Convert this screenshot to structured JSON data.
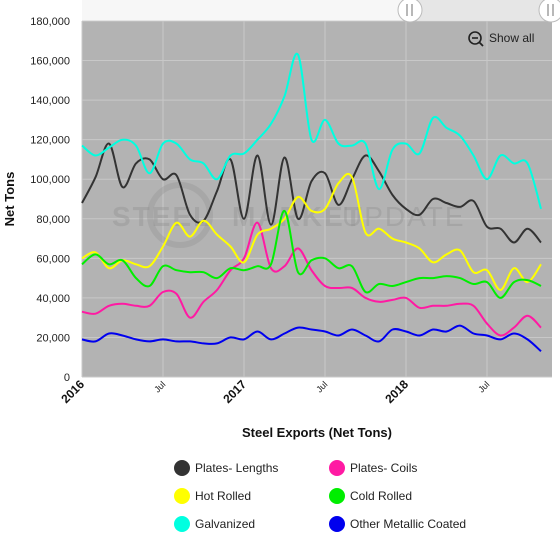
{
  "zoom_control": {
    "label": "Show all",
    "icon": "zoom-out-icon"
  },
  "watermark": {
    "part1": "STEEL",
    "part2": "MARKET",
    "part3": "UPDATE"
  },
  "chart_data": {
    "type": "line",
    "title": "",
    "xlabel": "Steel Exports (Net Tons)",
    "ylabel": "Net Tons",
    "ylim": [
      0,
      180000
    ],
    "yticks": [
      0,
      20000,
      40000,
      60000,
      80000,
      100000,
      120000,
      140000,
      160000,
      180000
    ],
    "ytick_labels": [
      "0",
      "20,000",
      "40,000",
      "60,000",
      "80,000",
      "100,000",
      "120,000",
      "140,000",
      "160,000",
      "180,000"
    ],
    "x_range": [
      "2016-01",
      "2018-11"
    ],
    "xticks": [
      {
        "label": "2016",
        "month": 0,
        "major": true
      },
      {
        "label": "Jul",
        "month": 6,
        "major": false
      },
      {
        "label": "2017",
        "month": 12,
        "major": true
      },
      {
        "label": "Jul",
        "month": 18,
        "major": false
      },
      {
        "label": "2018",
        "month": 24,
        "major": true
      },
      {
        "label": "Jul",
        "month": 30,
        "major": false
      }
    ],
    "grid": true,
    "legend_position": "bottom",
    "x": [
      "2016-01",
      "2016-02",
      "2016-03",
      "2016-04",
      "2016-05",
      "2016-06",
      "2016-07",
      "2016-08",
      "2016-09",
      "2016-10",
      "2016-11",
      "2016-12",
      "2017-01",
      "2017-02",
      "2017-03",
      "2017-04",
      "2017-05",
      "2017-06",
      "2017-07",
      "2017-08",
      "2017-09",
      "2017-10",
      "2017-11",
      "2017-12",
      "2018-01",
      "2018-02",
      "2018-03",
      "2018-04",
      "2018-05",
      "2018-06",
      "2018-07",
      "2018-08",
      "2018-09",
      "2018-10",
      "2018-11"
    ],
    "series": [
      {
        "name": "Plates- Lengths",
        "color": "#333333",
        "values": [
          88000,
          101000,
          118000,
          96000,
          108000,
          110000,
          100000,
          102000,
          82000,
          79000,
          94000,
          110000,
          80000,
          112000,
          77000,
          111000,
          80000,
          99000,
          103000,
          87000,
          100000,
          112000,
          104000,
          92000,
          85000,
          82000,
          90000,
          88000,
          86000,
          89000,
          76000,
          75000,
          68000,
          75000,
          68000
        ]
      },
      {
        "name": "Plates- Coils",
        "color": "#ff1aa3",
        "values": [
          33000,
          32000,
          36000,
          37000,
          36000,
          36000,
          43000,
          42000,
          30000,
          38000,
          44000,
          54000,
          60000,
          78000,
          55000,
          56000,
          65000,
          54000,
          46000,
          45000,
          45000,
          40000,
          38000,
          39000,
          40000,
          35000,
          36000,
          36000,
          37000,
          36000,
          27000,
          21000,
          25000,
          31000,
          25000
        ]
      },
      {
        "name": "Hot Rolled",
        "color": "#ffff00",
        "values": [
          60000,
          63000,
          55000,
          59000,
          57000,
          56000,
          66000,
          78000,
          71000,
          79000,
          72000,
          66000,
          58000,
          72000,
          75000,
          80000,
          91000,
          84000,
          85000,
          98000,
          101000,
          73000,
          75000,
          70000,
          68000,
          65000,
          58000,
          62000,
          64000,
          53000,
          54000,
          44000,
          55000,
          48000,
          57000
        ]
      },
      {
        "name": "Cold Rolled",
        "color": "#00ee00",
        "values": [
          57000,
          62000,
          57000,
          59000,
          50000,
          46000,
          56000,
          54000,
          53000,
          53000,
          50000,
          55000,
          54000,
          56000,
          57000,
          84000,
          53000,
          59000,
          60000,
          55000,
          56000,
          43000,
          47000,
          46000,
          48000,
          50000,
          50000,
          51000,
          50000,
          47000,
          48000,
          40000,
          48000,
          49000,
          46000
        ]
      },
      {
        "name": "Galvanized",
        "color": "#00ffe0",
        "values": [
          117000,
          112000,
          116000,
          120000,
          117000,
          103000,
          118000,
          118000,
          110000,
          108000,
          100000,
          112000,
          113000,
          120000,
          128000,
          142000,
          163000,
          120000,
          130000,
          118000,
          117000,
          118000,
          95000,
          115000,
          118000,
          113000,
          131000,
          126000,
          122000,
          112000,
          100000,
          112000,
          108000,
          108000,
          85000
        ]
      },
      {
        "name": "Other Metallic Coated",
        "color": "#0000ee",
        "values": [
          19000,
          18000,
          22000,
          21000,
          19000,
          18000,
          19000,
          18000,
          18000,
          17000,
          17000,
          20000,
          19000,
          23000,
          19000,
          22000,
          25000,
          24000,
          23000,
          21000,
          24000,
          21000,
          18000,
          24000,
          23000,
          21000,
          24000,
          23000,
          26000,
          22000,
          21000,
          19000,
          22000,
          19000,
          13000
        ]
      }
    ]
  }
}
